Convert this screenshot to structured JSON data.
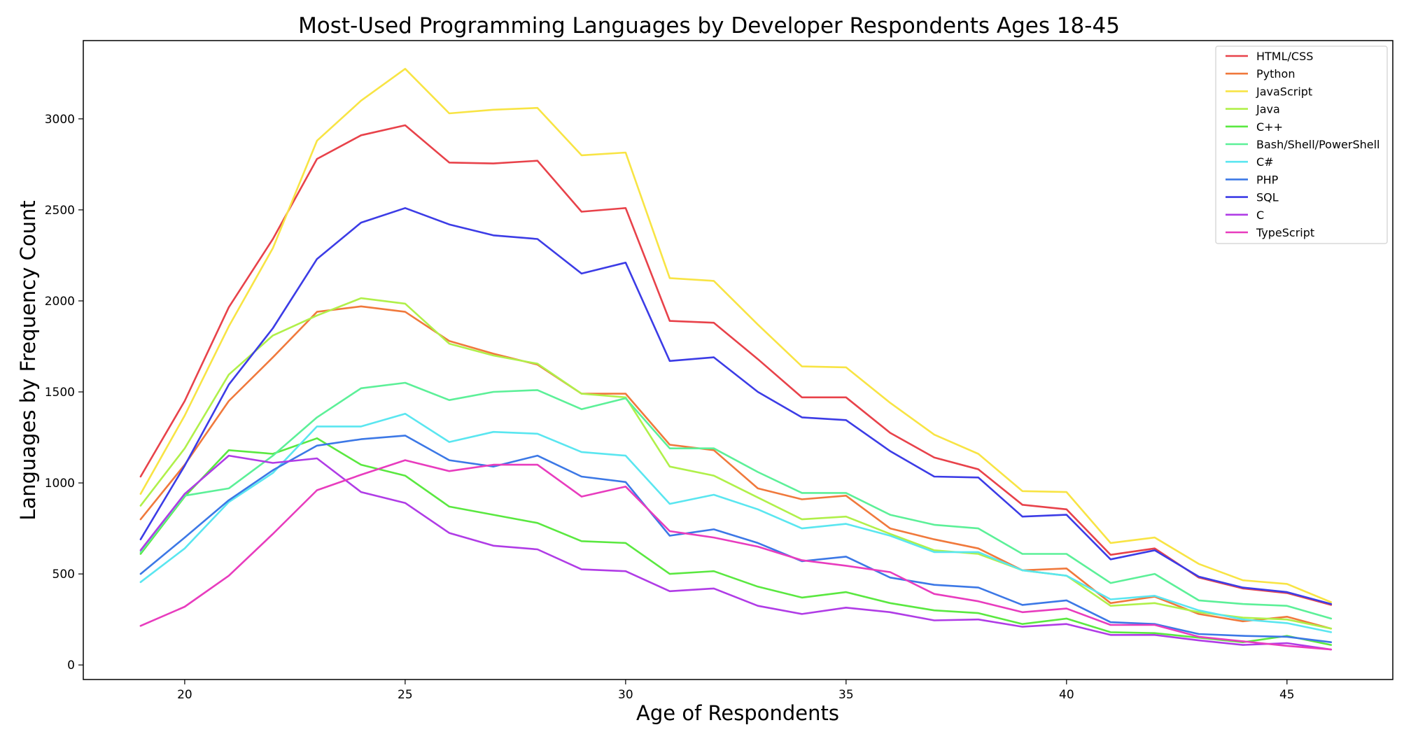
{
  "chart_data": {
    "type": "line",
    "title": "Most-Used Programming Languages by Developer Respondents Ages 18-45",
    "xlabel": "Age of Respondents",
    "ylabel": "Languages by Frequency Count",
    "xlim": [
      17.7,
      47.4
    ],
    "ylim": [
      -80,
      3430
    ],
    "xticks": [
      20,
      25,
      30,
      35,
      40,
      45
    ],
    "yticks": [
      0,
      500,
      1000,
      1500,
      2000,
      2500,
      3000
    ],
    "grid": false,
    "legend_position": "top-right",
    "x": [
      19,
      20,
      21,
      22,
      23,
      24,
      25,
      26,
      27,
      28,
      29,
      30,
      31,
      32,
      33,
      34,
      35,
      36,
      37,
      38,
      39,
      40,
      41,
      42,
      43,
      44,
      45,
      46
    ],
    "series": [
      {
        "name": "HTML/CSS",
        "color": "#e8424a",
        "values": [
          1035,
          1450,
          1965,
          2340,
          2780,
          2910,
          2965,
          2760,
          2755,
          2770,
          2490,
          2510,
          1890,
          1880,
          1680,
          1470,
          1470,
          1275,
          1140,
          1075,
          880,
          855,
          605,
          640,
          480,
          420,
          395,
          330
        ]
      },
      {
        "name": "Python",
        "color": "#f0793c",
        "values": [
          800,
          1100,
          1450,
          1690,
          1940,
          1970,
          1940,
          1780,
          1710,
          1650,
          1490,
          1490,
          1210,
          1180,
          970,
          910,
          930,
          750,
          690,
          640,
          520,
          530,
          340,
          375,
          280,
          240,
          265,
          200
        ]
      },
      {
        "name": "JavaScript",
        "color": "#f8e444",
        "values": [
          940,
          1370,
          1860,
          2290,
          2880,
          3100,
          3275,
          3030,
          3050,
          3060,
          2800,
          2815,
          2125,
          2110,
          1870,
          1640,
          1635,
          1440,
          1265,
          1160,
          955,
          950,
          670,
          700,
          555,
          465,
          445,
          345
        ]
      },
      {
        "name": "Java",
        "color": "#b0f04a",
        "values": [
          875,
          1190,
          1595,
          1810,
          1920,
          2015,
          1985,
          1765,
          1700,
          1655,
          1490,
          1470,
          1090,
          1040,
          920,
          800,
          815,
          720,
          630,
          610,
          520,
          490,
          325,
          340,
          290,
          260,
          250,
          200
        ]
      },
      {
        "name": "C++",
        "color": "#5ae840",
        "values": [
          610,
          925,
          1180,
          1160,
          1245,
          1100,
          1040,
          870,
          825,
          780,
          680,
          670,
          500,
          515,
          430,
          370,
          400,
          340,
          300,
          285,
          225,
          255,
          180,
          175,
          150,
          125,
          160,
          110
        ]
      },
      {
        "name": "Bash/Shell/PowerShell",
        "color": "#5cf098",
        "values": [
          620,
          930,
          970,
          1150,
          1360,
          1520,
          1550,
          1455,
          1500,
          1510,
          1405,
          1465,
          1190,
          1190,
          1060,
          945,
          945,
          825,
          770,
          750,
          610,
          610,
          450,
          500,
          355,
          335,
          325,
          255
        ]
      },
      {
        "name": "C#",
        "color": "#5ae6f0",
        "values": [
          455,
          640,
          895,
          1055,
          1310,
          1310,
          1380,
          1225,
          1280,
          1270,
          1170,
          1150,
          885,
          935,
          855,
          750,
          775,
          710,
          620,
          620,
          520,
          490,
          360,
          380,
          300,
          250,
          230,
          180
        ]
      },
      {
        "name": "PHP",
        "color": "#3c78e6",
        "values": [
          500,
          700,
          905,
          1070,
          1205,
          1240,
          1260,
          1125,
          1090,
          1150,
          1035,
          1005,
          710,
          745,
          670,
          570,
          595,
          480,
          440,
          425,
          330,
          355,
          235,
          225,
          170,
          160,
          155,
          125
        ]
      },
      {
        "name": "SQL",
        "color": "#3c3ce6",
        "values": [
          690,
          1095,
          1540,
          1850,
          2230,
          2430,
          2510,
          2420,
          2360,
          2340,
          2150,
          2210,
          1670,
          1690,
          1500,
          1360,
          1345,
          1175,
          1035,
          1030,
          815,
          825,
          580,
          630,
          485,
          425,
          400,
          335
        ]
      },
      {
        "name": "C",
        "color": "#b03ce6",
        "values": [
          630,
          940,
          1150,
          1110,
          1135,
          950,
          890,
          725,
          655,
          635,
          525,
          515,
          405,
          420,
          325,
          280,
          315,
          290,
          245,
          250,
          210,
          225,
          165,
          165,
          135,
          110,
          120,
          85
        ]
      },
      {
        "name": "TypeScript",
        "color": "#e83cbe",
        "values": [
          215,
          320,
          490,
          720,
          960,
          1045,
          1125,
          1065,
          1100,
          1100,
          925,
          980,
          735,
          700,
          650,
          575,
          545,
          510,
          390,
          350,
          290,
          310,
          220,
          220,
          155,
          130,
          105,
          85
        ]
      }
    ]
  }
}
